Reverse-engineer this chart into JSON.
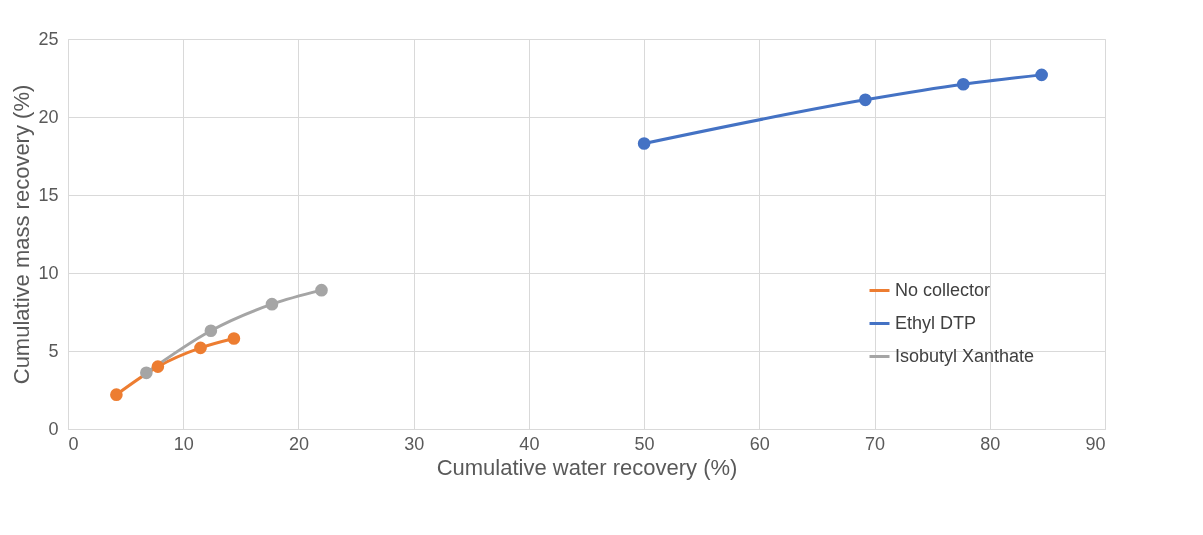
{
  "chart_data": {
    "type": "line",
    "xlabel": "Cumulative water recovery (%)",
    "ylabel": "Cumulative mass recovery (%)",
    "xlim": [
      0,
      90
    ],
    "xticks": [
      0,
      10,
      20,
      30,
      40,
      50,
      60,
      70,
      80,
      90
    ],
    "ylim": [
      0,
      25
    ],
    "yticks": [
      0,
      5,
      10,
      15,
      20,
      25
    ],
    "grid": true,
    "legend": "right",
    "marker": "circle",
    "line_style": "solid",
    "series": [
      {
        "name": "No collector",
        "color": "#ed7d31",
        "x": [
          4.2,
          7.8,
          11.5,
          14.4
        ],
        "values": [
          2.2,
          4.0,
          5.2,
          5.8
        ]
      },
      {
        "name": "Ethyl DTP",
        "color": "#4472c4",
        "x": [
          50.0,
          69.2,
          77.7,
          84.5
        ],
        "values": [
          18.3,
          21.1,
          22.1,
          22.7
        ]
      },
      {
        "name": "Isobutyl Xanthate",
        "color": "#a5a5a5",
        "x": [
          6.8,
          12.4,
          17.7,
          22.0
        ],
        "values": [
          3.6,
          6.3,
          8.0,
          8.9
        ]
      }
    ]
  }
}
